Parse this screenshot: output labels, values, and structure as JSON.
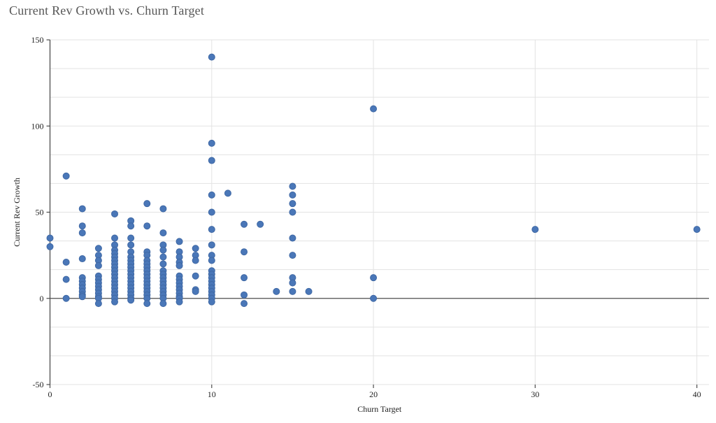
{
  "page": {
    "background": "#ffffff"
  },
  "chart_data": {
    "type": "scatter",
    "title": "Current Rev Growth vs. Churn Target",
    "xlabel": "Churn Target",
    "ylabel": "Current Rev Growth",
    "xlim": [
      0,
      40.75
    ],
    "ylim": [
      -50,
      150
    ],
    "x_ticks": [
      0,
      10,
      20,
      30,
      40
    ],
    "y_ticks": [
      150,
      100,
      50,
      0,
      -50
    ],
    "y_minor_step": 16.6667,
    "grid": true,
    "legend_position": "none",
    "colors": {
      "point_fill": "#4a77b8",
      "point_stroke": "#3f68a4",
      "grid": "#e3e3e3",
      "axis": "#4d4d4d",
      "tick_text": "#1f1f1f",
      "axis_label_text": "#1f1f1f",
      "title_text": "#565656"
    },
    "points": [
      [
        0,
        35
      ],
      [
        0,
        30
      ],
      [
        1,
        71
      ],
      [
        1,
        21
      ],
      [
        1,
        11
      ],
      [
        1,
        0
      ],
      [
        2,
        52
      ],
      [
        2,
        42
      ],
      [
        2,
        38
      ],
      [
        2,
        23
      ],
      [
        2,
        12
      ],
      [
        2,
        10
      ],
      [
        2,
        8
      ],
      [
        2,
        6
      ],
      [
        2,
        4
      ],
      [
        2,
        2
      ],
      [
        2,
        1
      ],
      [
        3,
        29
      ],
      [
        3,
        25
      ],
      [
        3,
        22
      ],
      [
        3,
        19
      ],
      [
        3,
        13
      ],
      [
        3,
        11
      ],
      [
        3,
        9
      ],
      [
        3,
        7
      ],
      [
        3,
        5
      ],
      [
        3,
        3
      ],
      [
        3,
        1
      ],
      [
        3,
        0
      ],
      [
        3,
        -3
      ],
      [
        4,
        49
      ],
      [
        4,
        35
      ],
      [
        4,
        31
      ],
      [
        4,
        28
      ],
      [
        4,
        26
      ],
      [
        4,
        24
      ],
      [
        4,
        22
      ],
      [
        4,
        20
      ],
      [
        4,
        18
      ],
      [
        4,
        16
      ],
      [
        4,
        14
      ],
      [
        4,
        12
      ],
      [
        4,
        10
      ],
      [
        4,
        8
      ],
      [
        4,
        6
      ],
      [
        4,
        4
      ],
      [
        4,
        2
      ],
      [
        4,
        0
      ],
      [
        4,
        -2
      ],
      [
        5,
        45
      ],
      [
        5,
        42
      ],
      [
        5,
        35
      ],
      [
        5,
        31
      ],
      [
        5,
        27
      ],
      [
        5,
        24
      ],
      [
        5,
        22
      ],
      [
        5,
        20
      ],
      [
        5,
        18
      ],
      [
        5,
        16
      ],
      [
        5,
        14
      ],
      [
        5,
        12
      ],
      [
        5,
        10
      ],
      [
        5,
        8
      ],
      [
        5,
        6
      ],
      [
        5,
        4
      ],
      [
        5,
        2
      ],
      [
        5,
        0
      ],
      [
        5,
        -1
      ],
      [
        6,
        55
      ],
      [
        6,
        42
      ],
      [
        6,
        27
      ],
      [
        6,
        25
      ],
      [
        6,
        22
      ],
      [
        6,
        20
      ],
      [
        6,
        18
      ],
      [
        6,
        16
      ],
      [
        6,
        14
      ],
      [
        6,
        12
      ],
      [
        6,
        10
      ],
      [
        6,
        8
      ],
      [
        6,
        6
      ],
      [
        6,
        4
      ],
      [
        6,
        2
      ],
      [
        6,
        0
      ],
      [
        6,
        -3
      ],
      [
        7,
        52
      ],
      [
        7,
        38
      ],
      [
        7,
        31
      ],
      [
        7,
        28
      ],
      [
        7,
        24
      ],
      [
        7,
        20
      ],
      [
        7,
        16
      ],
      [
        7,
        14
      ],
      [
        7,
        12
      ],
      [
        7,
        10
      ],
      [
        7,
        8
      ],
      [
        7,
        6
      ],
      [
        7,
        4
      ],
      [
        7,
        2
      ],
      [
        7,
        0
      ],
      [
        7,
        -3
      ],
      [
        8,
        33
      ],
      [
        8,
        27
      ],
      [
        8,
        24
      ],
      [
        8,
        21
      ],
      [
        8,
        19
      ],
      [
        8,
        13
      ],
      [
        8,
        11
      ],
      [
        8,
        9
      ],
      [
        8,
        7
      ],
      [
        8,
        5
      ],
      [
        8,
        3
      ],
      [
        8,
        1
      ],
      [
        8,
        0
      ],
      [
        8,
        -2
      ],
      [
        9,
        29
      ],
      [
        9,
        25
      ],
      [
        9,
        22
      ],
      [
        9,
        13
      ],
      [
        9,
        5
      ],
      [
        9,
        4
      ],
      [
        10,
        140
      ],
      [
        10,
        90
      ],
      [
        10,
        80
      ],
      [
        10,
        60
      ],
      [
        10,
        50
      ],
      [
        10,
        40
      ],
      [
        10,
        31
      ],
      [
        10,
        25
      ],
      [
        10,
        22
      ],
      [
        10,
        16
      ],
      [
        10,
        14
      ],
      [
        10,
        12
      ],
      [
        10,
        10
      ],
      [
        10,
        8
      ],
      [
        10,
        6
      ],
      [
        10,
        4
      ],
      [
        10,
        2
      ],
      [
        10,
        0
      ],
      [
        10,
        -2
      ],
      [
        11,
        61
      ],
      [
        12,
        43
      ],
      [
        12,
        27
      ],
      [
        12,
        12
      ],
      [
        12,
        2
      ],
      [
        12,
        -3
      ],
      [
        13,
        43
      ],
      [
        14,
        4
      ],
      [
        15,
        65
      ],
      [
        15,
        60
      ],
      [
        15,
        55
      ],
      [
        15,
        50
      ],
      [
        15,
        35
      ],
      [
        15,
        25
      ],
      [
        15,
        12
      ],
      [
        15,
        9
      ],
      [
        15,
        4
      ],
      [
        16,
        4
      ],
      [
        20,
        110
      ],
      [
        20,
        12
      ],
      [
        20,
        0
      ],
      [
        30,
        40
      ],
      [
        40,
        40
      ]
    ]
  }
}
